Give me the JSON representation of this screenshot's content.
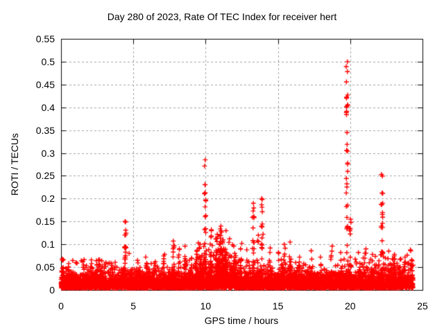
{
  "chart_data": {
    "type": "scatter",
    "title": "Day 280 of 2023, Rate Of TEC Index for receiver hert",
    "xlabel": "GPS time / hours",
    "ylabel": "ROTI / TECUs",
    "xlim": [
      0,
      25
    ],
    "ylim": [
      0,
      0.55
    ],
    "xticks": [
      [
        0,
        "0"
      ],
      [
        5,
        "5"
      ],
      [
        10,
        "10"
      ],
      [
        15,
        "15"
      ],
      [
        20,
        "20"
      ],
      [
        25,
        "25"
      ]
    ],
    "yticks": [
      [
        0,
        "0"
      ],
      [
        0.05,
        "0.05"
      ],
      [
        0.1,
        "0.1"
      ],
      [
        0.15,
        "0.15"
      ],
      [
        0.2,
        "0.2"
      ],
      [
        0.25,
        "0.25"
      ],
      [
        0.3,
        "0.3"
      ],
      [
        0.35,
        "0.35"
      ],
      [
        0.4,
        "0.4"
      ],
      [
        0.45,
        "0.45"
      ],
      [
        0.5,
        "0.5"
      ],
      [
        0.55,
        "0.55"
      ]
    ],
    "legend": null,
    "grid": {
      "show": true,
      "color": "#a0a0a0",
      "dash": [
        3,
        3
      ]
    },
    "border_color": "#000000",
    "marker": {
      "shape": "plus",
      "color": "#ff0000",
      "size": 7
    },
    "data_time_range": [
      0,
      24.35
    ],
    "baseline_band": {
      "floor": 0.004,
      "points": 6500,
      "segments": [
        {
          "from": 0,
          "to": 9.3,
          "scale": 0.012
        },
        {
          "from": 9.3,
          "to": 12.2,
          "scale": 0.02
        },
        {
          "from": 12.2,
          "to": 19.5,
          "scale": 0.012
        },
        {
          "from": 19.5,
          "to": 24.35,
          "scale": 0.014
        }
      ]
    },
    "spikes": [
      {
        "t": 0.12,
        "peak": 0.068,
        "n": 7
      },
      {
        "t": 0.5,
        "peak": 0.058,
        "n": 5
      },
      {
        "t": 1.05,
        "peak": 0.06,
        "n": 6
      },
      {
        "t": 1.55,
        "peak": 0.062,
        "n": 6
      },
      {
        "t": 2.1,
        "peak": 0.058,
        "n": 5
      },
      {
        "t": 2.55,
        "peak": 0.066,
        "n": 6
      },
      {
        "t": 3.05,
        "peak": 0.06,
        "n": 5
      },
      {
        "t": 3.55,
        "peak": 0.058,
        "n": 5
      },
      {
        "t": 4.45,
        "peak": 0.15,
        "n": 26
      },
      {
        "t": 4.75,
        "peak": 0.08,
        "n": 6
      },
      {
        "t": 5.3,
        "peak": 0.065,
        "n": 6
      },
      {
        "t": 5.9,
        "peak": 0.072,
        "n": 7
      },
      {
        "t": 6.5,
        "peak": 0.062,
        "n": 5
      },
      {
        "t": 7.15,
        "peak": 0.078,
        "n": 7
      },
      {
        "t": 7.8,
        "peak": 0.107,
        "n": 16
      },
      {
        "t": 8.15,
        "peak": 0.09,
        "n": 8
      },
      {
        "t": 8.6,
        "peak": 0.096,
        "n": 10
      },
      {
        "t": 9.0,
        "peak": 0.07,
        "n": 6
      },
      {
        "t": 9.35,
        "peak": 0.085,
        "n": 8
      },
      {
        "t": 9.6,
        "peak": 0.1,
        "n": 8
      },
      {
        "t": 9.97,
        "peak": 0.285,
        "n": 22,
        "spread": 1.4
      },
      {
        "t": 10.35,
        "peak": 0.132,
        "n": 14
      },
      {
        "t": 10.75,
        "peak": 0.122,
        "n": 12
      },
      {
        "t": 10.9,
        "peak": 0.1,
        "n": 12
      },
      {
        "t": 11.05,
        "peak": 0.14,
        "n": 26
      },
      {
        "t": 11.2,
        "peak": 0.11,
        "n": 12
      },
      {
        "t": 11.35,
        "peak": 0.13,
        "n": 16
      },
      {
        "t": 11.65,
        "peak": 0.112,
        "n": 10
      },
      {
        "t": 12.0,
        "peak": 0.096,
        "n": 8
      },
      {
        "t": 12.45,
        "peak": 0.102,
        "n": 10
      },
      {
        "t": 12.85,
        "peak": 0.088,
        "n": 7
      },
      {
        "t": 13.3,
        "peak": 0.19,
        "n": 20,
        "spread": 1.3
      },
      {
        "t": 13.62,
        "peak": 0.12,
        "n": 8
      },
      {
        "t": 13.92,
        "peak": 0.2,
        "n": 18,
        "spread": 1.3
      },
      {
        "t": 14.45,
        "peak": 0.092,
        "n": 8
      },
      {
        "t": 15.05,
        "peak": 0.082,
        "n": 6
      },
      {
        "t": 15.45,
        "peak": 0.1,
        "n": 8
      },
      {
        "t": 15.85,
        "peak": 0.105,
        "n": 10
      },
      {
        "t": 16.5,
        "peak": 0.072,
        "n": 6
      },
      {
        "t": 17.3,
        "peak": 0.086,
        "n": 8
      },
      {
        "t": 18.0,
        "peak": 0.072,
        "n": 6
      },
      {
        "t": 18.7,
        "peak": 0.096,
        "n": 8
      },
      {
        "t": 19.35,
        "peak": 0.082,
        "n": 6
      },
      {
        "t": 19.78,
        "peak": 0.5,
        "n": 34,
        "spread": 1.0
      },
      {
        "t": 20.0,
        "peak": 0.155,
        "n": 10
      },
      {
        "t": 20.6,
        "peak": 0.082,
        "n": 6
      },
      {
        "t": 21.05,
        "peak": 0.09,
        "n": 8
      },
      {
        "t": 21.5,
        "peak": 0.078,
        "n": 6
      },
      {
        "t": 22.2,
        "peak": 0.253,
        "n": 24,
        "spread": 1.2
      },
      {
        "t": 22.65,
        "peak": 0.085,
        "n": 6
      },
      {
        "t": 23.05,
        "peak": 0.078,
        "n": 6
      },
      {
        "t": 23.5,
        "peak": 0.068,
        "n": 5
      },
      {
        "t": 23.8,
        "peak": 0.072,
        "n": 6
      },
      {
        "t": 24.2,
        "peak": 0.088,
        "n": 3
      },
      {
        "t": 24.3,
        "peak": 0.066,
        "n": 5
      }
    ]
  }
}
